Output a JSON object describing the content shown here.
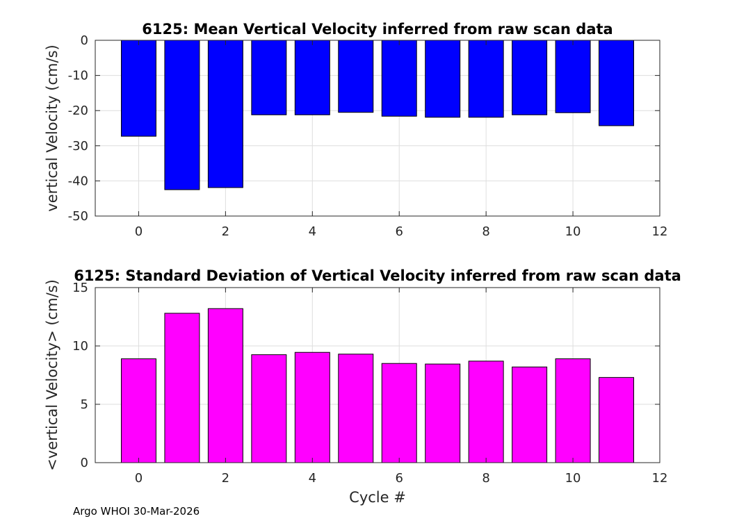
{
  "footer": "Argo WHOI 30-Mar-2026",
  "chart_data": [
    {
      "type": "bar",
      "title": "6125: Mean Vertical Velocity inferred from raw scan data",
      "xlabel": "",
      "ylabel": "vertical Velocity (cm/s)",
      "x": [
        0,
        1,
        2,
        3,
        4,
        5,
        6,
        7,
        8,
        9,
        10,
        11
      ],
      "values": [
        -27.3,
        -42.5,
        -41.9,
        -21.2,
        -21.2,
        -20.5,
        -21.6,
        -21.9,
        -21.9,
        -21.2,
        -20.6,
        -24.3
      ],
      "xlim": [
        -1,
        12
      ],
      "ylim": [
        -50,
        0
      ],
      "xticks": [
        0,
        2,
        4,
        6,
        8,
        10,
        12
      ],
      "yticks": [
        0,
        -10,
        -20,
        -30,
        -40,
        -50
      ],
      "color": "#0000ff",
      "grid": true
    },
    {
      "type": "bar",
      "title": "6125: Standard Deviation of Vertical Velocity inferred from raw scan data",
      "xlabel": "Cycle #",
      "ylabel": "<vertical Velocity> (cm/s)",
      "x": [
        0,
        1,
        2,
        3,
        4,
        5,
        6,
        7,
        8,
        9,
        10,
        11
      ],
      "values": [
        8.9,
        12.8,
        13.2,
        9.25,
        9.45,
        9.3,
        8.5,
        8.45,
        8.7,
        8.2,
        8.9,
        7.3
      ],
      "xlim": [
        -1,
        12
      ],
      "ylim": [
        0,
        15
      ],
      "xticks": [
        0,
        2,
        4,
        6,
        8,
        10,
        12
      ],
      "yticks": [
        0,
        5,
        10,
        15
      ],
      "color": "#ff00ff",
      "grid": true
    }
  ]
}
